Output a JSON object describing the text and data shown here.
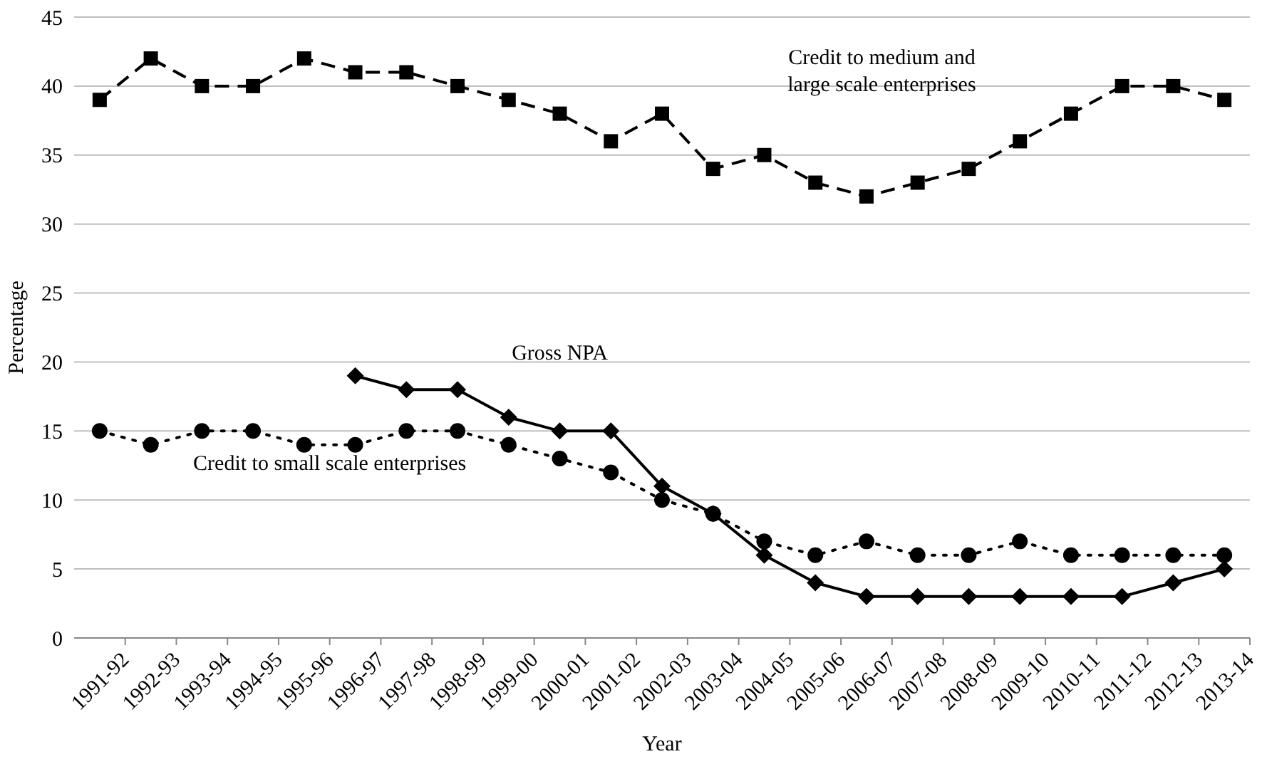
{
  "chart_data": {
    "type": "line",
    "xlabel": "Year",
    "ylabel": "Percentage",
    "categories": [
      "1991-92",
      "1992-93",
      "1993-94",
      "1994-95",
      "1995-96",
      "1996-97",
      "1997-98",
      "1998-99",
      "1999-00",
      "2000-01",
      "2001-02",
      "2002-03",
      "2003-04",
      "2004-05",
      "2005-06",
      "2006-07",
      "2007-08",
      "2008-09",
      "2009-10",
      "2010-11",
      "2011-12",
      "2012-13",
      "2013-14"
    ],
    "series": [
      {
        "name": "Credit to medium and large scale enterprises",
        "color": "#000000",
        "marker": "square",
        "line_style": "dashed",
        "values": [
          39,
          42,
          40,
          40,
          42,
          41,
          41,
          40,
          39,
          38,
          36,
          38,
          34,
          35,
          33,
          32,
          33,
          34,
          36,
          38,
          40,
          40,
          39
        ]
      },
      {
        "name": "Gross NPA",
        "color": "#000000",
        "marker": "diamond",
        "line_style": "solid",
        "values": [
          null,
          null,
          null,
          null,
          null,
          19,
          18,
          18,
          16,
          15,
          15,
          11,
          9,
          6,
          4,
          3,
          3,
          3,
          3,
          3,
          3,
          4,
          5
        ]
      },
      {
        "name": "Credit to small scale enterprises",
        "color": "#000000",
        "marker": "circle",
        "line_style": "dotted",
        "values": [
          15,
          14,
          15,
          15,
          14,
          14,
          15,
          15,
          14,
          13,
          12,
          10,
          9,
          7,
          6,
          7,
          6,
          6,
          7,
          6,
          6,
          6,
          6
        ]
      }
    ],
    "ylim": [
      0,
      45
    ],
    "yticks": [
      0,
      5,
      10,
      15,
      20,
      25,
      30,
      35,
      40,
      45
    ],
    "grid": "y"
  }
}
